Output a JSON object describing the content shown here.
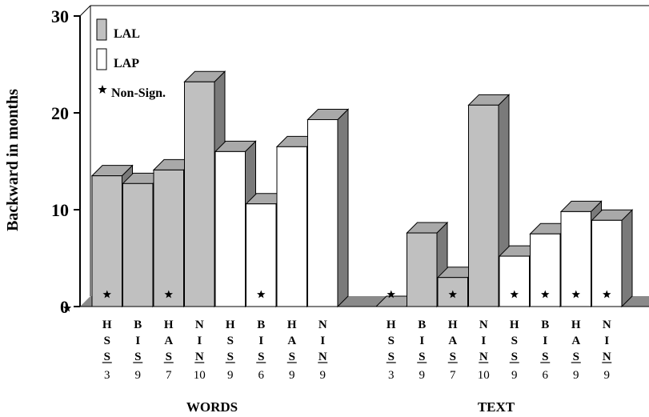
{
  "chart_data": {
    "type": "bar",
    "style": "3d",
    "ylabel": "Backward in months",
    "ylim": [
      0,
      30
    ],
    "yticks": [
      0,
      10,
      20,
      30
    ],
    "legend": {
      "position": "top-left",
      "items": [
        {
          "name": "LAL",
          "swatch": "gray"
        },
        {
          "name": "LAP",
          "swatch": "white"
        },
        {
          "name": "Non-Sign.",
          "swatch": "star"
        }
      ]
    },
    "colors": {
      "LAL": "#c0c0c0",
      "LAP": "#ffffff",
      "side": "#7a7a7a",
      "top": "#a9a9a9",
      "axis": "#000000"
    },
    "groups": [
      {
        "name": "WORDS",
        "bars": [
          {
            "series": "LAL",
            "label": [
              "H",
              "S",
              "S"
            ],
            "n": "3",
            "underline": [
              2
            ],
            "value": 13.5,
            "nonsign": true
          },
          {
            "series": "LAL",
            "label": [
              "B",
              "I",
              "S"
            ],
            "n": "9",
            "underline": [
              2
            ],
            "value": 12.7,
            "nonsign": false
          },
          {
            "series": "LAL",
            "label": [
              "H",
              "A",
              "S"
            ],
            "n": "7",
            "underline": [
              2
            ],
            "value": 14.1,
            "nonsign": true
          },
          {
            "series": "LAL",
            "label": [
              "N",
              "I",
              "N"
            ],
            "n": "10",
            "underline": [
              2
            ],
            "value": 23.2,
            "nonsign": false
          },
          {
            "series": "LAP",
            "label": [
              "H",
              "S",
              "S"
            ],
            "n": "9",
            "underline": [
              2
            ],
            "value": 16.0,
            "nonsign": false
          },
          {
            "series": "LAP",
            "label": [
              "B",
              "I",
              "S"
            ],
            "n": "6",
            "underline": [
              2
            ],
            "value": 10.6,
            "nonsign": true
          },
          {
            "series": "LAP",
            "label": [
              "H",
              "A",
              "S"
            ],
            "n": "9",
            "underline": [
              2
            ],
            "value": 16.5,
            "nonsign": false
          },
          {
            "series": "LAP",
            "label": [
              "N",
              "I",
              "N"
            ],
            "n": "9",
            "underline": [
              2
            ],
            "value": 19.3,
            "nonsign": false
          }
        ]
      },
      {
        "name": "TEXT",
        "bars": [
          {
            "series": "LAL",
            "label": [
              "H",
              "S",
              "S"
            ],
            "n": "3",
            "underline": [
              2
            ],
            "value": 0,
            "nonsign": true
          },
          {
            "series": "LAL",
            "label": [
              "B",
              "I",
              "S"
            ],
            "n": "9",
            "underline": [
              2
            ],
            "value": 7.6,
            "nonsign": false
          },
          {
            "series": "LAL",
            "label": [
              "H",
              "A",
              "S"
            ],
            "n": "7",
            "underline": [
              2
            ],
            "value": 3.0,
            "nonsign": true
          },
          {
            "series": "LAL",
            "label": [
              "N",
              "I",
              "N"
            ],
            "n": "10",
            "underline": [
              2
            ],
            "value": 20.8,
            "nonsign": false
          },
          {
            "series": "LAP",
            "label": [
              "H",
              "S",
              "S"
            ],
            "n": "9",
            "underline": [
              2
            ],
            "value": 5.2,
            "nonsign": true
          },
          {
            "series": "LAP",
            "label": [
              "B",
              "I",
              "S"
            ],
            "n": "6",
            "underline": [
              2
            ],
            "value": 7.5,
            "nonsign": true
          },
          {
            "series": "LAP",
            "label": [
              "H",
              "A",
              "S"
            ],
            "n": "9",
            "underline": [
              2
            ],
            "value": 9.8,
            "nonsign": true
          },
          {
            "series": "LAP",
            "label": [
              "N",
              "I",
              "N"
            ],
            "n": "9",
            "underline": [
              2
            ],
            "value": 8.9,
            "nonsign": true
          }
        ]
      }
    ]
  }
}
